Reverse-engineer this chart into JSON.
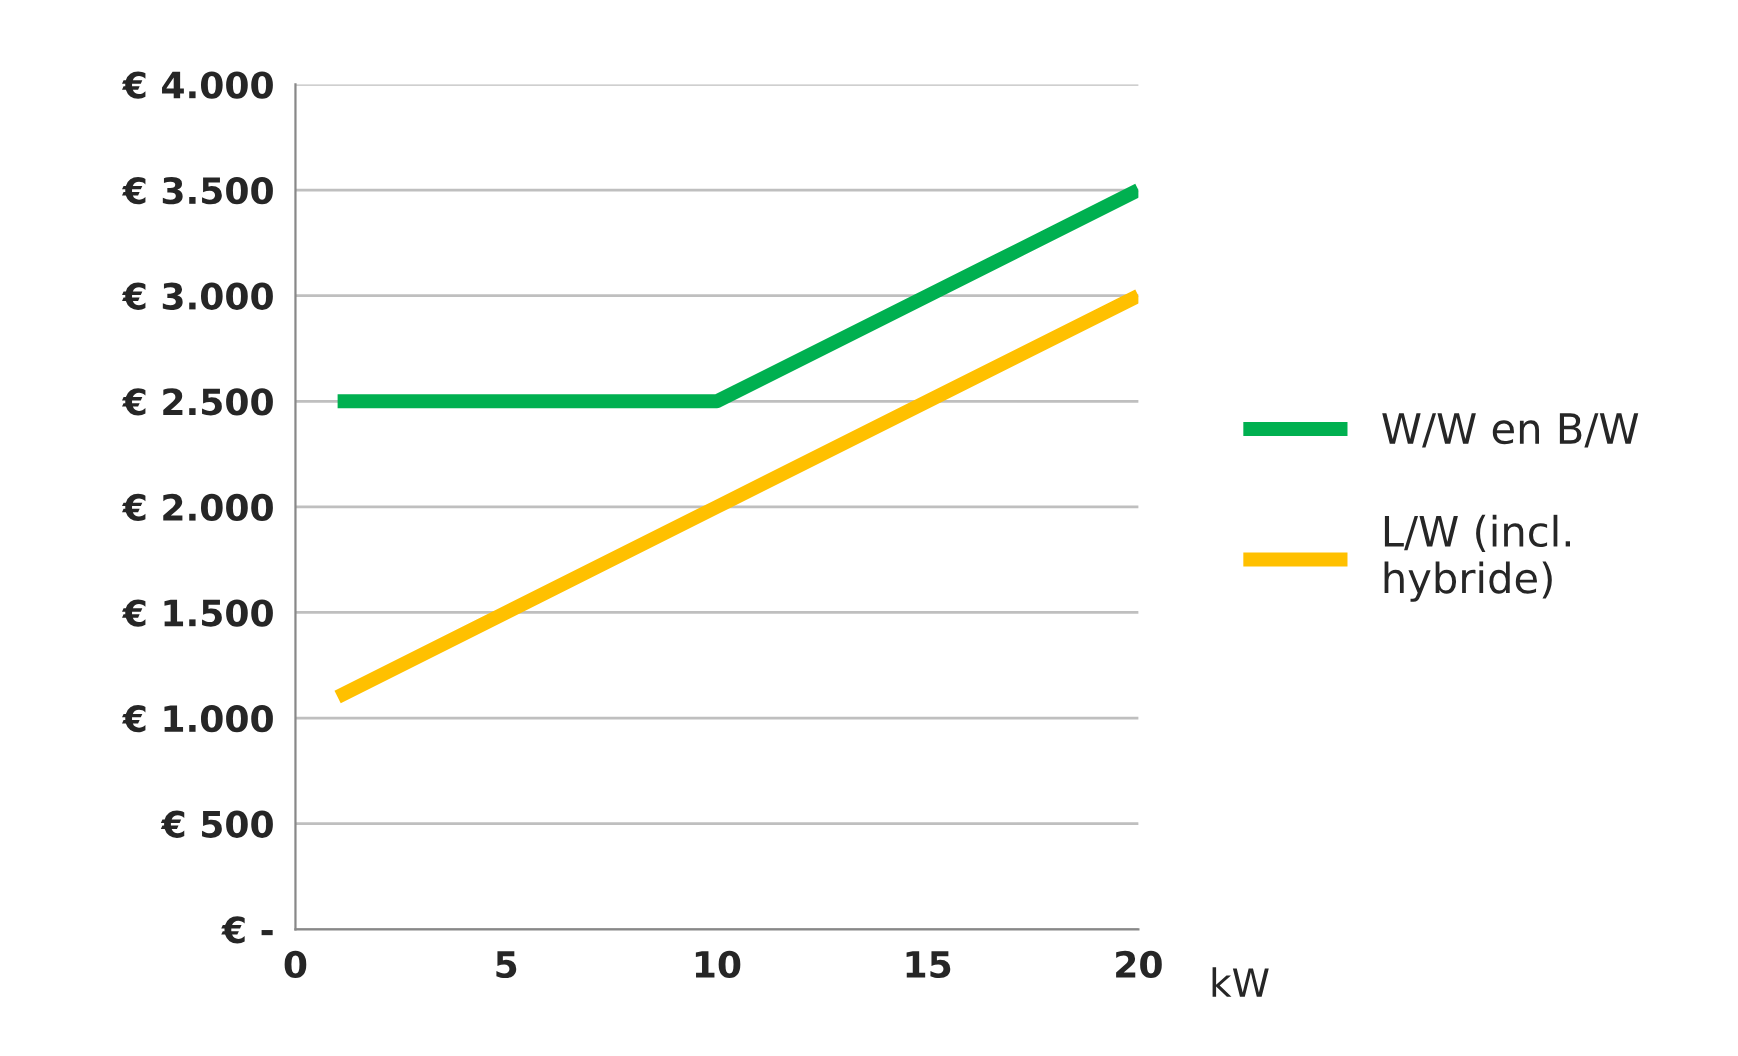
{
  "chart_data": {
    "type": "line",
    "xlabel": "kW",
    "xlim": [
      0,
      20
    ],
    "xticks": [
      0,
      5,
      10,
      15,
      20
    ],
    "ylim": [
      0,
      4000
    ],
    "yticks": [
      {
        "value": 0,
        "label": "€ -"
      },
      {
        "value": 500,
        "label": "€ 500"
      },
      {
        "value": 1000,
        "label": "€ 1.000"
      },
      {
        "value": 1500,
        "label": "€ 1.500"
      },
      {
        "value": 2000,
        "label": "€ 2.000"
      },
      {
        "value": 2500,
        "label": "€ 2.500"
      },
      {
        "value": 3000,
        "label": "€ 3.000"
      },
      {
        "value": 3500,
        "label": "€ 3.500"
      },
      {
        "value": 4000,
        "label": "€ 4.000"
      }
    ],
    "grid": "y",
    "legend": "right",
    "marker": "none",
    "line_style": "solid",
    "series": [
      {
        "name": "W/W en B/W",
        "color": "#00b050",
        "x": [
          1,
          10,
          20
        ],
        "values": [
          2500,
          2500,
          3500
        ]
      },
      {
        "name": "L/W (incl.\nhybride)",
        "color": "#ffc000",
        "x": [
          1,
          5,
          10,
          15,
          20
        ],
        "values": [
          1100,
          1500,
          2000,
          2500,
          3000
        ]
      }
    ]
  }
}
